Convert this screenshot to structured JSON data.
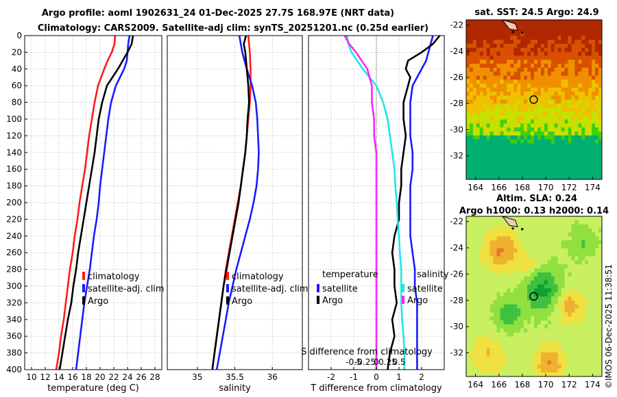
{
  "title": {
    "line1": "Argo profile: aoml 1902631_24 01-Dec-2025 27.7S 168.97E (NRT data)",
    "line2": "Climatology: CARS2009. Satellite-adj clim: synTS_20251201.nc (0.25d earlier)"
  },
  "timestamp": "©IMOS 06-Dec-2025 11:38:51",
  "colors": {
    "clim": "#ff1a1a",
    "sat": "#1a1aff",
    "argo": "#000000",
    "sat_s": "#22e6e6",
    "argo_s": "#ff22ff",
    "grid": "#bfbfbf"
  },
  "chart_data": [
    {
      "type": "line",
      "id": "temp",
      "xlabel": "temperature (deg C)",
      "ylabel": "",
      "xlim": [
        9,
        29
      ],
      "ylim": [
        400,
        0
      ],
      "xticks": [
        10,
        12,
        14,
        16,
        18,
        20,
        22,
        24,
        26,
        28
      ],
      "yticks": [
        0,
        20,
        40,
        60,
        80,
        100,
        120,
        140,
        160,
        180,
        200,
        220,
        240,
        260,
        280,
        300,
        320,
        340,
        360,
        380,
        400
      ],
      "legend": [
        "climatology",
        "satellite-adj. clim",
        "Argo"
      ],
      "series": [
        {
          "name": "climatology",
          "color": "clim",
          "depth": [
            0,
            10,
            20,
            30,
            40,
            60,
            80,
            100,
            120,
            140,
            160,
            180,
            200,
            220,
            240,
            260,
            280,
            300,
            320,
            340,
            360,
            380,
            400
          ],
          "values": [
            22.2,
            22.1,
            21.7,
            21.1,
            20.6,
            19.7,
            19.2,
            18.8,
            18.4,
            18.1,
            17.8,
            17.4,
            17.0,
            16.7,
            16.3,
            16.0,
            15.6,
            15.3,
            15.0,
            14.7,
            14.3,
            14.0,
            13.6
          ]
        },
        {
          "name": "satellite-adj. clim",
          "color": "sat",
          "depth": [
            0,
            5,
            10,
            20,
            30,
            40,
            50,
            60,
            80,
            100,
            120,
            140,
            160,
            180,
            200,
            220,
            240,
            260,
            280,
            300,
            320,
            340,
            360,
            380,
            400
          ],
          "values": [
            24.3,
            24.2,
            24.1,
            24.0,
            23.9,
            23.5,
            22.9,
            22.3,
            21.6,
            21.2,
            20.9,
            20.6,
            20.3,
            20.0,
            19.8,
            19.5,
            19.1,
            18.8,
            18.5,
            18.1,
            17.7,
            17.4,
            17.1,
            16.8,
            16.5
          ]
        },
        {
          "name": "Argo",
          "color": "argo",
          "depth": [
            0,
            10,
            20,
            30,
            40,
            50,
            60,
            80,
            100,
            120,
            140,
            160,
            180,
            200,
            220,
            240,
            260,
            280,
            300,
            320,
            340,
            360,
            380,
            400
          ],
          "values": [
            24.8,
            24.6,
            24.0,
            23.3,
            22.6,
            21.8,
            21.0,
            20.3,
            19.8,
            19.5,
            19.2,
            18.8,
            18.4,
            18.0,
            17.6,
            17.2,
            16.8,
            16.5,
            16.1,
            15.8,
            15.3,
            14.9,
            14.5,
            14.1
          ]
        }
      ]
    },
    {
      "type": "line",
      "id": "sal",
      "xlabel": "salinity",
      "ylabel": "",
      "xlim": [
        34.6,
        36.4
      ],
      "ylim": [
        400,
        0
      ],
      "xticks": [
        35,
        35.5,
        36
      ],
      "xticklabels": [
        "35",
        "35.5",
        "36"
      ],
      "legend": [
        "climatology",
        "satellite-adj. clim",
        "Argo"
      ],
      "series": [
        {
          "name": "climatology",
          "color": "clim",
          "depth": [
            0,
            20,
            40,
            60,
            80,
            100,
            120,
            140,
            160,
            180,
            200,
            220,
            240,
            260,
            280,
            300,
            320,
            340,
            360,
            380,
            400
          ],
          "values": [
            35.68,
            35.7,
            35.71,
            35.71,
            35.7,
            35.68,
            35.66,
            35.64,
            35.61,
            35.58,
            35.54,
            35.5,
            35.46,
            35.42,
            35.38,
            35.35,
            35.32,
            35.29,
            35.26,
            35.23,
            35.2
          ]
        },
        {
          "name": "satellite-adj. clim",
          "color": "sat",
          "depth": [
            0,
            20,
            40,
            60,
            80,
            100,
            120,
            140,
            160,
            180,
            200,
            220,
            240,
            260,
            280,
            300,
            320,
            340,
            360,
            380,
            400
          ],
          "values": [
            35.56,
            35.6,
            35.66,
            35.73,
            35.78,
            35.8,
            35.81,
            35.82,
            35.81,
            35.79,
            35.75,
            35.7,
            35.64,
            35.58,
            35.52,
            35.47,
            35.42,
            35.38,
            35.34,
            35.3,
            35.26
          ]
        },
        {
          "name": "Argo",
          "color": "argo",
          "depth": [
            0,
            10,
            20,
            40,
            60,
            80,
            100,
            120,
            140,
            160,
            180,
            200,
            220,
            240,
            260,
            280,
            300,
            320,
            340,
            360,
            380,
            400
          ],
          "values": [
            35.65,
            35.62,
            35.64,
            35.66,
            35.68,
            35.69,
            35.67,
            35.66,
            35.64,
            35.61,
            35.58,
            35.55,
            35.51,
            35.47,
            35.43,
            35.39,
            35.35,
            35.32,
            35.29,
            35.26,
            35.23,
            35.2
          ]
        }
      ]
    },
    {
      "type": "line",
      "id": "diff",
      "xlabel": "T difference from climatology",
      "xlabel2": "S difference from climatology",
      "xlim": [
        -3,
        3
      ],
      "ylim": [
        400,
        0
      ],
      "xticks": [
        -2,
        -1,
        0,
        1,
        2
      ],
      "xticklabels": [
        "-2",
        "-1",
        "0",
        "1",
        "2"
      ],
      "xticks2": [
        -0.5,
        -0.25,
        0,
        0.25,
        0.5
      ],
      "xticklabels2": [
        "-0.5",
        "-0.25",
        "0",
        "0.25",
        "0.5"
      ],
      "legend_t_title": "temperature",
      "legend_s_title": "salinity",
      "legend_t": [
        "satellite",
        "Argo"
      ],
      "legend_s": [
        "satellite",
        "Argo"
      ],
      "series": [
        {
          "name": "T satellite",
          "color": "sat",
          "depth": [
            0,
            10,
            20,
            30,
            40,
            50,
            60,
            80,
            100,
            120,
            140,
            160,
            180,
            200,
            220,
            240,
            260,
            280,
            300,
            320,
            340,
            360,
            380,
            400
          ],
          "values": [
            2.5,
            2.4,
            2.3,
            2.2,
            2.0,
            1.8,
            1.6,
            1.5,
            1.5,
            1.5,
            1.6,
            1.6,
            1.5,
            1.5,
            1.5,
            1.5,
            1.6,
            1.7,
            1.7,
            1.8,
            1.8,
            1.8,
            1.8,
            1.8
          ]
        },
        {
          "name": "T Argo",
          "color": "argo",
          "depth": [
            0,
            10,
            20,
            30,
            40,
            50,
            60,
            80,
            100,
            120,
            140,
            160,
            180,
            200,
            220,
            240,
            260,
            280,
            300,
            320,
            340,
            360,
            380,
            400
          ],
          "values": [
            2.8,
            2.5,
            2.0,
            1.4,
            1.3,
            1.5,
            1.4,
            1.2,
            1.2,
            1.3,
            1.2,
            1.1,
            1.1,
            1.0,
            1.0,
            0.8,
            0.7,
            0.8,
            0.8,
            0.9,
            0.7,
            0.8,
            0.6,
            0.5
          ]
        },
        {
          "name": "S satellite",
          "color": "sat_s",
          "depth": [
            0,
            10,
            20,
            40,
            60,
            80,
            100,
            120,
            140,
            160,
            180,
            200,
            220,
            240,
            260,
            280,
            300,
            320,
            340,
            360,
            380,
            400
          ],
          "values": [
            -0.65,
            -0.62,
            -0.55,
            -0.3,
            0.0,
            0.15,
            0.25,
            0.3,
            0.35,
            0.4,
            0.42,
            0.45,
            0.47,
            0.5,
            0.52,
            0.55,
            0.55,
            0.55,
            0.57,
            0.6,
            0.62,
            0.62
          ]
        },
        {
          "name": "S Argo",
          "color": "argo_s",
          "depth": [
            0,
            10,
            20,
            40,
            60,
            80,
            100,
            120,
            140,
            160,
            180,
            200,
            220,
            240,
            260,
            280,
            300,
            320,
            340,
            360,
            380,
            400
          ],
          "values": [
            -0.7,
            -0.6,
            -0.45,
            -0.2,
            -0.1,
            -0.1,
            -0.05,
            -0.05,
            0,
            0,
            0,
            0,
            0,
            0,
            0,
            0,
            0,
            0,
            0,
            0,
            0,
            0
          ]
        }
      ]
    },
    {
      "type": "heatmap",
      "id": "sst",
      "title": "sat. SST: 24.5 Argo: 24.9",
      "xticks": [
        164,
        166,
        168,
        170,
        172,
        174
      ],
      "yticks": [
        -22,
        -24,
        -26,
        -28,
        -30,
        -32
      ],
      "marker": {
        "lon": 168.97,
        "lat": -27.7
      }
    },
    {
      "type": "heatmap",
      "id": "sla",
      "title": "Altim. SLA: 0.24",
      "title2": "Argo h1000: 0.13 h2000: 0.14",
      "xticks": [
        164,
        166,
        168,
        170,
        172,
        174
      ],
      "yticks": [
        -22,
        -24,
        -26,
        -28,
        -30,
        -32
      ],
      "marker": {
        "lon": 168.97,
        "lat": -27.7
      }
    }
  ]
}
